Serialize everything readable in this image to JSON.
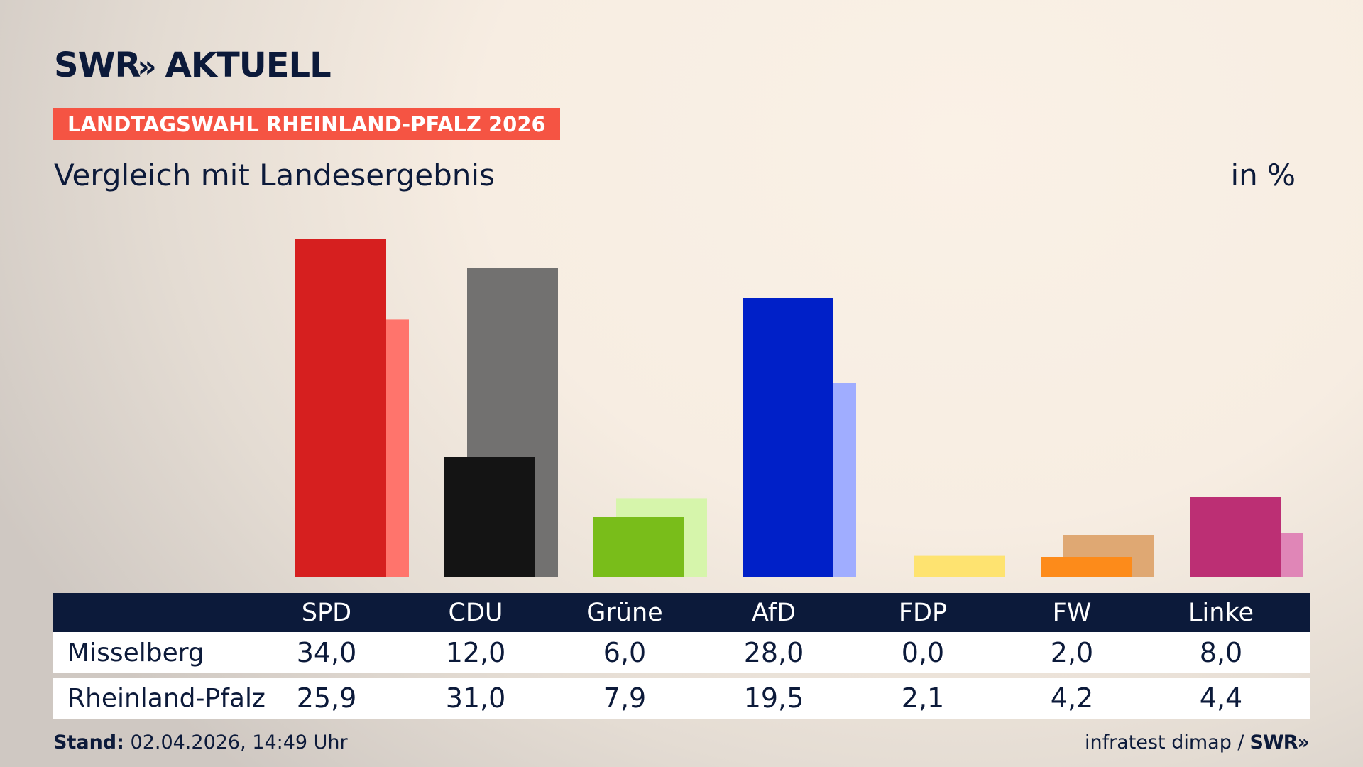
{
  "header": {
    "brand": "SWR",
    "brand_chevrons": "»",
    "brand_sub": "AKTUELL",
    "banner": "LANDTAGSWAHL RHEINLAND-PFALZ 2026",
    "subtitle": "Vergleich mit Landesergebnis",
    "unit": "in %"
  },
  "table": {
    "row_labels": [
      "Misselberg",
      "Rheinland-Pfalz"
    ],
    "display": {
      "local": [
        "34,0",
        "12,0",
        "6,0",
        "28,0",
        "0,0",
        "2,0",
        "8,0"
      ],
      "state": [
        "25,9",
        "31,0",
        "7,9",
        "19,5",
        "2,1",
        "4,2",
        "4,4"
      ]
    }
  },
  "footer": {
    "stand_label": "Stand:",
    "stand_value": "02.04.2026, 14:49 Uhr",
    "source": "infratest dimap /",
    "source_brand": "SWR»"
  },
  "chart_data": {
    "type": "bar",
    "categories": [
      "SPD",
      "CDU",
      "Grüne",
      "AfD",
      "FDP",
      "FW",
      "Linke"
    ],
    "series": [
      {
        "name": "Misselberg",
        "values": [
          34.0,
          12.0,
          6.0,
          28.0,
          0.0,
          2.0,
          8.0
        ],
        "colors": [
          "#d61f1f",
          "#141414",
          "#79bd1a",
          "#0020c8",
          "#fee370",
          "#fd8b1a",
          "#bc2f74"
        ]
      },
      {
        "name": "Rheinland-Pfalz",
        "values": [
          25.9,
          31.0,
          7.9,
          19.5,
          2.1,
          4.2,
          4.4
        ],
        "colors": [
          "#ff746c",
          "#727170",
          "#d6f5ab",
          "#a0adff",
          "#fee370",
          "#dfa873",
          "#e086b7"
        ]
      }
    ],
    "title": "Vergleich mit Landesergebnis",
    "ylabel": "in %",
    "ylim": [
      0,
      34
    ],
    "grid": false,
    "legend": "none"
  }
}
